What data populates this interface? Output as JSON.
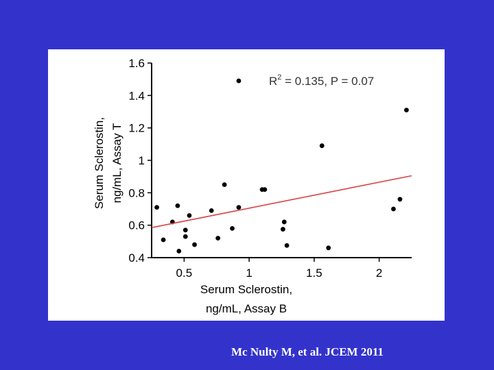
{
  "citation": "Mc Nulty M, et al. JCEM 2011",
  "chart_data": {
    "type": "scatter",
    "xlabel_lines": [
      "Serum Sclerostin,",
      "ng/mL, Assay B"
    ],
    "ylabel_lines": [
      "Serum Sclerostin,",
      "ng/mL, Assay T"
    ],
    "annotation": {
      "r2_prefix": "R",
      "r2_sup": "2",
      "rest": " = 0.135, P = 0.07"
    },
    "xlim": [
      0.25,
      2.25
    ],
    "ylim": [
      0.4,
      1.6
    ],
    "xticks": [
      0.5,
      1,
      1.5,
      2
    ],
    "xtick_labels": [
      "0.5",
      "1",
      "1.5",
      "2"
    ],
    "yticks": [
      0.4,
      0.6,
      0.8,
      1.0,
      1.2,
      1.4,
      1.6
    ],
    "ytick_labels": [
      "0.4",
      "0.6",
      "0.8",
      "1",
      "1.2",
      "1.4",
      "1.6"
    ],
    "grid": false,
    "point_color": "#000000",
    "line_color": "#d94040",
    "regression": {
      "x": [
        0.25,
        2.25
      ],
      "y": [
        0.585,
        0.905
      ]
    },
    "points": [
      {
        "x": 0.29,
        "y": 0.71
      },
      {
        "x": 0.34,
        "y": 0.51
      },
      {
        "x": 0.41,
        "y": 0.62
      },
      {
        "x": 0.45,
        "y": 0.72
      },
      {
        "x": 0.46,
        "y": 0.44
      },
      {
        "x": 0.51,
        "y": 0.57
      },
      {
        "x": 0.51,
        "y": 0.53
      },
      {
        "x": 0.54,
        "y": 0.66
      },
      {
        "x": 0.58,
        "y": 0.48
      },
      {
        "x": 0.71,
        "y": 0.69
      },
      {
        "x": 0.76,
        "y": 0.52
      },
      {
        "x": 0.81,
        "y": 0.85
      },
      {
        "x": 0.87,
        "y": 0.58
      },
      {
        "x": 0.92,
        "y": 0.71
      },
      {
        "x": 0.92,
        "y": 1.49
      },
      {
        "x": 1.1,
        "y": 0.82
      },
      {
        "x": 1.12,
        "y": 0.82
      },
      {
        "x": 1.26,
        "y": 0.575
      },
      {
        "x": 1.27,
        "y": 0.62
      },
      {
        "x": 1.29,
        "y": 0.475
      },
      {
        "x": 1.56,
        "y": 1.09
      },
      {
        "x": 1.61,
        "y": 0.46
      },
      {
        "x": 2.11,
        "y": 0.7
      },
      {
        "x": 2.16,
        "y": 0.76
      },
      {
        "x": 2.21,
        "y": 1.31
      }
    ]
  }
}
